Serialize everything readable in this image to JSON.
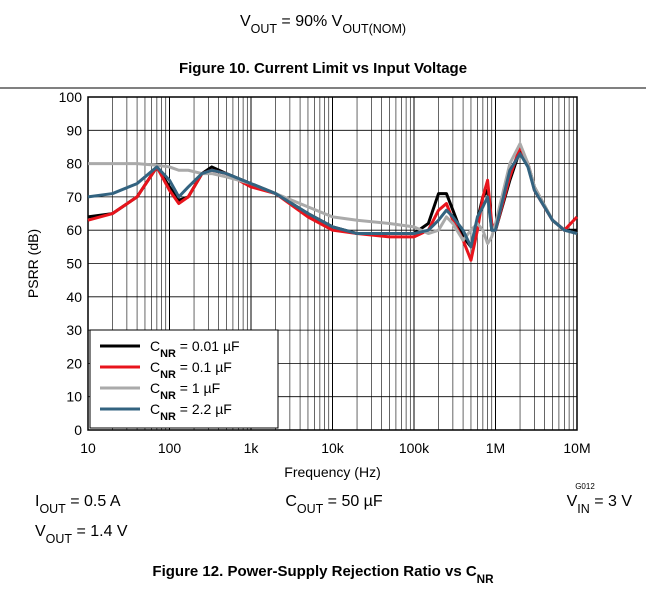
{
  "header": [
    {
      "text": "V"
    },
    {
      "text": "OUT",
      "sub": true
    },
    {
      "text": " = 90% V"
    },
    {
      "text": "OUT(NOM)",
      "sub": true
    }
  ],
  "figure10_caption": [
    {
      "text": "Figure 10. Current Limit vs Input Voltage"
    }
  ],
  "chart_data": {
    "type": "line",
    "x_label": "Frequency (Hz)",
    "y_label": "PSRR (dB)",
    "code": "G012",
    "log_x": true,
    "grid": true,
    "minor_grid": true,
    "legend": "bottom-left",
    "xlim": [
      10,
      10000000
    ],
    "ylim": [
      0,
      100
    ],
    "xticks": [
      10,
      100,
      {
        "value": 1000,
        "label": "1k"
      },
      {
        "value": 10000,
        "label": "10k"
      },
      {
        "value": 100000,
        "label": "100k"
      },
      {
        "value": 1000000,
        "label": "1M"
      },
      {
        "value": 10000000,
        "label": "10M"
      }
    ],
    "yticks": [
      0,
      10,
      20,
      30,
      40,
      50,
      60,
      70,
      80,
      90,
      100
    ],
    "x": [
      10,
      20,
      40,
      70,
      100,
      130,
      170,
      250,
      330,
      500,
      1000,
      2000,
      5000,
      10000,
      20000,
      50000,
      100000,
      150000,
      200000,
      250000,
      300000,
      400000,
      500000,
      600000,
      700000,
      800000,
      900000,
      1000000,
      1500000,
      2000000,
      2500000,
      3000000,
      5000000,
      7000000,
      10000000
    ],
    "series": [
      {
        "name": [
          {
            "text": "C"
          },
          {
            "text": "NR",
            "sub": true,
            "bold": true
          },
          {
            "text": " = 0.01 µF"
          }
        ],
        "color": "#000000",
        "values": [
          64,
          65,
          70,
          79,
          73,
          69,
          70,
          77,
          79,
          77,
          74,
          71,
          65,
          61,
          59,
          59,
          59,
          62,
          71,
          71,
          66,
          58,
          55,
          63,
          70,
          72,
          60,
          60,
          75,
          84,
          80,
          73,
          63,
          60,
          60
        ]
      },
      {
        "name": [
          {
            "text": "C"
          },
          {
            "text": "NR",
            "sub": true,
            "bold": true
          },
          {
            "text": " = 0.1 µF"
          }
        ],
        "color": "#e8141c",
        "values": [
          63,
          65,
          70,
          79,
          72,
          68,
          70,
          77,
          78,
          77,
          73,
          71,
          64,
          60,
          59,
          58,
          58,
          60,
          66,
          68,
          63,
          57,
          51,
          60,
          70,
          75,
          62,
          60,
          76,
          85,
          80,
          72,
          63,
          60,
          64
        ]
      },
      {
        "name": [
          {
            "text": "C"
          },
          {
            "text": "NR",
            "sub": true,
            "bold": true
          },
          {
            "text": " = 1 µF"
          }
        ],
        "color": "#aaaaaa",
        "values": [
          80,
          80,
          80,
          79.5,
          79,
          78,
          78,
          77,
          77,
          76,
          74,
          71,
          67,
          64,
          63,
          62,
          61,
          59,
          60,
          64,
          62,
          57,
          60,
          62,
          60,
          56,
          58,
          62,
          80,
          86,
          80,
          73,
          63,
          60,
          59
        ]
      },
      {
        "name": [
          {
            "text": "C"
          },
          {
            "text": "NR",
            "sub": true,
            "bold": true
          },
          {
            "text": " = 2.2 µF"
          }
        ],
        "color": "#336380",
        "values": [
          70,
          71,
          74,
          79,
          75,
          70,
          73,
          77,
          78,
          77,
          74,
          71,
          65,
          61,
          59,
          59,
          59,
          60,
          63,
          66,
          64,
          60,
          55,
          64,
          67,
          70,
          60,
          60,
          78,
          83,
          79,
          72,
          63,
          60,
          59
        ]
      }
    ]
  },
  "conditions": {
    "iout": [
      {
        "text": "I"
      },
      {
        "text": "OUT",
        "sub": true
      },
      {
        "text": " = 0.5 A"
      }
    ],
    "cout": [
      {
        "text": "C"
      },
      {
        "text": "OUT",
        "sub": true
      },
      {
        "text": " = 50 µF"
      }
    ],
    "vin": [
      {
        "text": "V"
      },
      {
        "text": "IN",
        "sub": true
      },
      {
        "text": " = 3 V"
      }
    ],
    "vout": [
      {
        "text": "V"
      },
      {
        "text": "OUT",
        "sub": true
      },
      {
        "text": " = 1.4 V"
      }
    ]
  },
  "figure12_caption": [
    {
      "text": "Figure 12. Power-Supply Rejection Ratio vs C"
    },
    {
      "text": "NR",
      "sub": true
    }
  ]
}
